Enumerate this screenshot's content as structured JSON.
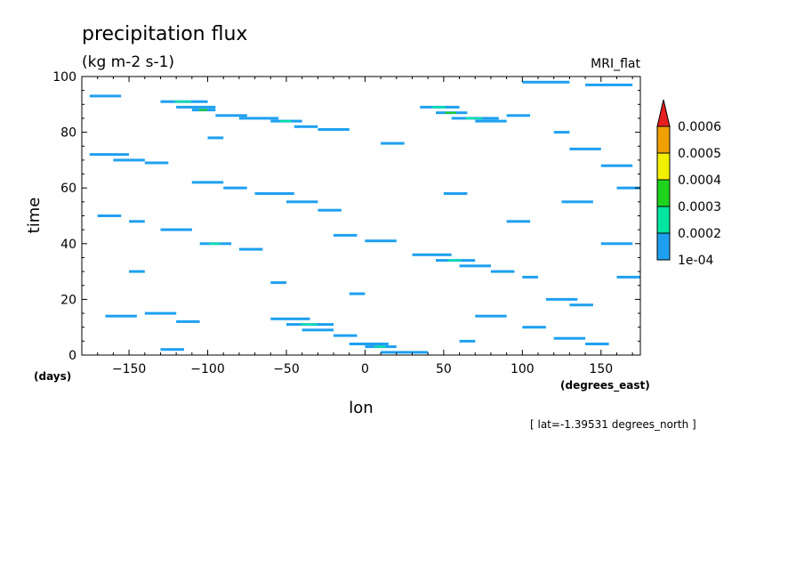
{
  "chart_data": {
    "type": "heatmap",
    "title": "precipitation flux",
    "units": "(kg m-2 s-1)",
    "model": "MRI_flat",
    "xlabel": "lon",
    "ylabel": "time",
    "x_units": "(degrees_east)",
    "y_units": "(days)",
    "xlim": [
      -180,
      175
    ],
    "ylim": [
      0,
      100
    ],
    "x_ticks": [
      -150,
      -100,
      -50,
      0,
      50,
      100,
      150
    ],
    "y_ticks": [
      0,
      20,
      40,
      60,
      80,
      100
    ],
    "annotation": "[ lat=-1.39531 degrees_north ]",
    "colorbar": {
      "levels": [
        "1e-04",
        "0.0002",
        "0.0003",
        "0.0004",
        "0.0005",
        "0.0006"
      ],
      "colors": [
        "#1ea0f0",
        "#00e6a0",
        "#1ed21e",
        "#f0f000",
        "#f0a000",
        "#e61e1e"
      ]
    },
    "series": [
      {
        "name": "lon_start",
        "values": [
          -180,
          -175,
          -170,
          -165,
          -160,
          -155,
          -150,
          -145,
          -140,
          -135,
          -130,
          -125,
          -120,
          -115,
          -110,
          -105,
          -100,
          -95,
          -90,
          -85,
          -80,
          -75,
          -70,
          -65,
          -60,
          -55,
          -50,
          -45,
          -40,
          -35,
          -30,
          -25,
          -20,
          -15,
          -10,
          -5,
          0,
          5,
          10,
          15,
          20,
          25,
          30,
          35,
          40,
          45,
          50,
          55,
          60,
          65,
          70,
          75,
          80,
          85,
          90,
          95,
          100,
          105,
          110,
          115,
          120,
          125,
          130,
          135,
          140,
          145,
          150,
          155,
          160,
          165,
          170
        ]
      },
      {
        "name": "events",
        "values": [
          [
            -175,
            93,
            20,
            1
          ],
          [
            -130,
            91,
            30,
            2
          ],
          [
            -120,
            89,
            25,
            1
          ],
          [
            -110,
            88,
            15,
            3
          ],
          [
            -95,
            86,
            20,
            1
          ],
          [
            -80,
            85,
            25,
            1
          ],
          [
            -60,
            84,
            20,
            2
          ],
          [
            -45,
            82,
            15,
            1
          ],
          [
            -30,
            81,
            20,
            1
          ],
          [
            35,
            89,
            25,
            2
          ],
          [
            45,
            87,
            20,
            3
          ],
          [
            55,
            85,
            30,
            2
          ],
          [
            70,
            84,
            20,
            1
          ],
          [
            100,
            98,
            30,
            1
          ],
          [
            140,
            97,
            30,
            1
          ],
          [
            -175,
            72,
            25,
            1
          ],
          [
            -160,
            70,
            20,
            1
          ],
          [
            -140,
            69,
            15,
            1
          ],
          [
            -110,
            62,
            20,
            1
          ],
          [
            -90,
            60,
            15,
            1
          ],
          [
            -70,
            58,
            25,
            1
          ],
          [
            -50,
            55,
            20,
            1
          ],
          [
            -30,
            52,
            15,
            1
          ],
          [
            -170,
            50,
            15,
            1
          ],
          [
            -150,
            48,
            10,
            1
          ],
          [
            -130,
            45,
            20,
            1
          ],
          [
            -105,
            40,
            20,
            2
          ],
          [
            -80,
            38,
            15,
            1
          ],
          [
            -20,
            43,
            15,
            1
          ],
          [
            0,
            41,
            20,
            1
          ],
          [
            30,
            36,
            25,
            1
          ],
          [
            45,
            34,
            25,
            2
          ],
          [
            60,
            32,
            20,
            1
          ],
          [
            80,
            30,
            15,
            1
          ],
          [
            100,
            28,
            10,
            1
          ],
          [
            115,
            20,
            20,
            1
          ],
          [
            130,
            18,
            15,
            1
          ],
          [
            -165,
            14,
            20,
            1
          ],
          [
            -140,
            15,
            20,
            1
          ],
          [
            -120,
            12,
            15,
            1
          ],
          [
            -60,
            13,
            25,
            1
          ],
          [
            -50,
            11,
            30,
            2
          ],
          [
            -40,
            9,
            20,
            1
          ],
          [
            -20,
            7,
            15,
            1
          ],
          [
            -10,
            4,
            25,
            1
          ],
          [
            0,
            3,
            20,
            2
          ],
          [
            10,
            1,
            30,
            1
          ],
          [
            -10,
            22,
            10,
            1
          ],
          [
            70,
            14,
            20,
            1
          ],
          [
            100,
            10,
            15,
            1
          ],
          [
            120,
            6,
            20,
            1
          ],
          [
            140,
            4,
            15,
            1
          ],
          [
            150,
            68,
            20,
            1
          ],
          [
            160,
            60,
            15,
            1
          ],
          [
            125,
            55,
            20,
            1
          ],
          [
            90,
            48,
            15,
            1
          ],
          [
            50,
            58,
            15,
            1
          ],
          [
            150,
            40,
            20,
            1
          ],
          [
            160,
            28,
            15,
            1
          ],
          [
            -100,
            78,
            10,
            1
          ],
          [
            10,
            76,
            15,
            1
          ],
          [
            130,
            74,
            20,
            1
          ],
          [
            120,
            80,
            10,
            1
          ],
          [
            -150,
            30,
            10,
            1
          ],
          [
            -60,
            26,
            10,
            1
          ],
          [
            -130,
            2,
            15,
            1
          ],
          [
            60,
            5,
            10,
            1
          ],
          [
            90,
            86,
            15,
            1
          ]
        ]
      }
    ]
  }
}
